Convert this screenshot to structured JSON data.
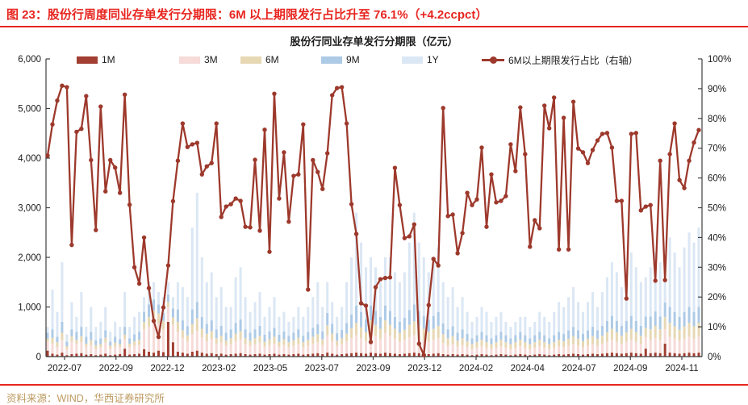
{
  "header": {
    "title": "图 23：股份行周度同业存单发行分期限：6M 以上期限发行占比升至 76.1%（+4.2ccpct）"
  },
  "footer": {
    "source": "资料来源：WIND，华西证券研究所"
  },
  "colors": {
    "accent_red": "#e8251f",
    "footer_gold": "#bd9b60",
    "axis": "#3f3f3f",
    "bar_1m": "#a23e32",
    "bar_3m": "#f6dbd9",
    "bar_6m": "#e7d8b4",
    "bar_9m": "#adcae6",
    "bar_1y": "#dbe7f4",
    "line": "#9d392c"
  },
  "chart_data": {
    "type": "bar",
    "subtype": "stacked-bar-with-line-combo",
    "title": "股份行同业存单发行分期限（亿元）",
    "legend_position": "top",
    "grid": false,
    "left_axis": {
      "label": "亿元",
      "min": 0,
      "max": 6000,
      "step": 1000,
      "ticks": [
        "0",
        "1,000",
        "2,000",
        "3,000",
        "4,000",
        "5,000",
        "6,000"
      ]
    },
    "right_axis": {
      "label": "占比",
      "min": 0,
      "max": 100,
      "step": 10,
      "ticks": [
        "0%",
        "10%",
        "20%",
        "30%",
        "40%",
        "50%",
        "60%",
        "70%",
        "80%",
        "90%",
        "100%"
      ]
    },
    "x_tick_labels": [
      "2022-07",
      "2022-09",
      "2022-12",
      "2023-02",
      "2023-05",
      "2023-07",
      "2023-09",
      "2023-12",
      "2024-02",
      "2024-04",
      "2024-07",
      "2024-09",
      "2024-11"
    ],
    "series": [
      {
        "name": "1M",
        "type": "bar",
        "color": "#a23e32",
        "values": [
          120,
          60,
          40,
          80,
          30,
          50,
          60,
          70,
          40,
          50,
          30,
          40,
          60,
          30,
          40,
          50,
          160,
          40,
          50,
          60,
          150,
          100,
          80,
          120,
          90,
          700,
          290,
          100,
          80,
          60,
          100,
          120,
          80,
          60,
          70,
          50,
          60,
          40,
          50,
          60,
          70,
          50,
          40,
          50,
          60,
          40,
          50,
          60,
          40,
          50,
          40,
          50,
          60,
          40,
          50,
          60,
          70,
          50,
          80,
          60,
          40,
          50,
          60,
          70,
          80,
          70,
          60,
          80,
          70,
          60,
          80,
          70,
          60,
          50,
          60,
          70,
          80,
          70,
          60,
          50,
          60,
          70,
          50,
          40,
          50,
          40,
          50,
          40,
          30,
          40,
          50,
          40,
          30,
          40,
          50,
          40,
          30,
          40,
          50,
          40,
          30,
          40,
          50,
          40,
          30,
          40,
          50,
          40,
          50,
          60,
          50,
          40,
          50,
          60,
          50,
          60,
          70,
          80,
          70,
          60,
          70,
          80,
          70,
          60,
          160,
          70,
          80,
          70,
          260,
          80,
          70,
          60,
          70,
          80,
          70,
          80
        ]
      },
      {
        "name": "3M",
        "type": "bar",
        "color": "#f6dbd9",
        "values": [
          180,
          200,
          150,
          250,
          120,
          260,
          200,
          220,
          160,
          180,
          120,
          150,
          220,
          130,
          160,
          140,
          200,
          150,
          170,
          180,
          400,
          500,
          600,
          550,
          450,
          300,
          350,
          400,
          300,
          250,
          350,
          400,
          300,
          250,
          280,
          200,
          220,
          180,
          200,
          250,
          280,
          200,
          180,
          200,
          220,
          160,
          180,
          200,
          160,
          180,
          150,
          170,
          190,
          150,
          170,
          200,
          220,
          180,
          350,
          250,
          180,
          200,
          250,
          300,
          350,
          300,
          250,
          400,
          350,
          300,
          400,
          350,
          300,
          250,
          280,
          320,
          350,
          300,
          280,
          250,
          280,
          300,
          220,
          180,
          200,
          160,
          180,
          150,
          120,
          140,
          160,
          140,
          120,
          140,
          160,
          140,
          120,
          140,
          160,
          140,
          120,
          140,
          160,
          140,
          120,
          140,
          160,
          150,
          170,
          190,
          170,
          150,
          170,
          190,
          170,
          200,
          230,
          260,
          230,
          200,
          230,
          260,
          230,
          200,
          230,
          260,
          290,
          260,
          290,
          320,
          290,
          260,
          290,
          320,
          290,
          320
        ]
      },
      {
        "name": "6M",
        "type": "bar",
        "color": "#e7d8b4",
        "values": [
          60,
          120,
          100,
          150,
          60,
          100,
          80,
          120,
          60,
          100,
          80,
          60,
          100,
          60,
          80,
          60,
          80,
          70,
          90,
          100,
          150,
          200,
          250,
          200,
          180,
          100,
          150,
          200,
          150,
          120,
          200,
          250,
          180,
          150,
          160,
          120,
          140,
          100,
          120,
          150,
          160,
          120,
          100,
          120,
          140,
          100,
          120,
          140,
          100,
          120,
          100,
          110,
          130,
          100,
          120,
          140,
          160,
          120,
          200,
          150,
          100,
          120,
          150,
          200,
          250,
          220,
          180,
          250,
          220,
          200,
          250,
          220,
          200,
          180,
          200,
          250,
          280,
          250,
          220,
          200,
          220,
          250,
          180,
          150,
          160,
          120,
          140,
          120,
          100,
          110,
          130,
          110,
          100,
          110,
          130,
          110,
          100,
          110,
          130,
          110,
          100,
          110,
          130,
          110,
          100,
          110,
          130,
          120,
          140,
          160,
          140,
          120,
          140,
          160,
          140,
          160,
          190,
          220,
          190,
          160,
          190,
          220,
          190,
          160,
          190,
          220,
          250,
          220,
          250,
          280,
          250,
          220,
          250,
          280,
          250,
          280
        ]
      },
      {
        "name": "9M",
        "type": "bar",
        "color": "#adcae6",
        "values": [
          120,
          170,
          110,
          220,
          90,
          140,
          160,
          190,
          140,
          170,
          100,
          120,
          150,
          80,
          120,
          100,
          160,
          110,
          140,
          160,
          200,
          250,
          220,
          180,
          160,
          150,
          180,
          250,
          200,
          180,
          300,
          330,
          240,
          200,
          220,
          180,
          200,
          160,
          180,
          220,
          240,
          180,
          160,
          180,
          200,
          140,
          160,
          180,
          140,
          160,
          130,
          150,
          170,
          130,
          160,
          180,
          200,
          160,
          250,
          200,
          150,
          170,
          220,
          280,
          350,
          310,
          260,
          300,
          280,
          240,
          300,
          280,
          240,
          220,
          240,
          300,
          340,
          300,
          260,
          240,
          260,
          280,
          220,
          180,
          200,
          160,
          180,
          150,
          120,
          140,
          160,
          140,
          120,
          140,
          160,
          140,
          120,
          140,
          160,
          140,
          120,
          140,
          160,
          140,
          120,
          140,
          160,
          150,
          170,
          190,
          170,
          150,
          170,
          190,
          170,
          200,
          230,
          260,
          230,
          200,
          230,
          260,
          230,
          200,
          230,
          260,
          290,
          260,
          290,
          320,
          290,
          260,
          290,
          320,
          290,
          320
        ]
      },
      {
        "name": "1Y",
        "type": "bar",
        "color": "#dbe7f4",
        "values": [
          120,
          800,
          500,
          1200,
          150,
          550,
          300,
          700,
          200,
          500,
          270,
          330,
          470,
          200,
          300,
          250,
          700,
          230,
          350,
          400,
          300,
          450,
          350,
          250,
          320,
          250,
          230,
          550,
          670,
          590,
          1650,
          2200,
          1200,
          840,
          970,
          650,
          780,
          520,
          450,
          920,
          1050,
          650,
          420,
          550,
          680,
          360,
          490,
          620,
          360,
          390,
          280,
          320,
          450,
          380,
          500,
          620,
          850,
          490,
          620,
          440,
          330,
          460,
          820,
          1150,
          1870,
          1400,
          1050,
          970,
          880,
          700,
          970,
          1080,
          900,
          800,
          920,
          1360,
          1850,
          1380,
          1180,
          960,
          1080,
          1300,
          830,
          650,
          790,
          520,
          650,
          440,
          330,
          370,
          500,
          470,
          330,
          370,
          400,
          270,
          230,
          270,
          300,
          370,
          230,
          270,
          400,
          370,
          330,
          470,
          600,
          540,
          670,
          800,
          570,
          440,
          570,
          700,
          470,
          680,
          880,
          1080,
          980,
          780,
          880,
          1280,
          1080,
          880,
          790,
          990,
          1190,
          1090,
          910,
          1400,
          1200,
          1000,
          1300,
          1500,
          1400,
          1600
        ]
      },
      {
        "name": "6M以上期限发行占比（右轴）",
        "type": "line",
        "axis": "right",
        "color": "#9d392c",
        "values": [
          67.5,
          78,
          86,
          91,
          90.5,
          37.5,
          75.5,
          76.5,
          87.5,
          66,
          42.5,
          84,
          55.5,
          66,
          63.5,
          55,
          88,
          51,
          30,
          24.5,
          40,
          23,
          12,
          6.6,
          16.5,
          30.6,
          52.2,
          65.8,
          78.3,
          70.4,
          71.3,
          71.8,
          61.2,
          63.9,
          65,
          78.3,
          46.9,
          50.4,
          51.2,
          53.1,
          52.3,
          43.6,
          43.4,
          66.1,
          42.3,
          76.2,
          35.2,
          88.3,
          53.1,
          68.6,
          45.3,
          60.7,
          61.2,
          78,
          22.5,
          66,
          62,
          56.3,
          68.3,
          87.8,
          90.2,
          90.5,
          78.3,
          51.2,
          41.2,
          17.9,
          17.1,
          4.9,
          23.3,
          26,
          26.4,
          26.6,
          63.4,
          50.9,
          39.8,
          40.4,
          44.4,
          4.3,
          0.5,
          17.3,
          32.8,
          30.6,
          83.5,
          47.2,
          47.7,
          34.7,
          41.5,
          55,
          50.9,
          52.8,
          70.2,
          43.6,
          61.2,
          51.8,
          52.3,
          53.9,
          71.3,
          62.3,
          83.7,
          68,
          36.9,
          45.8,
          43.1,
          84.3,
          76.7,
          87,
          36,
          80.2,
          36,
          85.6,
          69.9,
          68.6,
          65,
          69.4,
          72.6,
          74.8,
          75.1,
          70.2,
          52.3,
          52.3,
          19.5,
          74.8,
          75.1,
          49.1,
          50.4,
          50.9,
          25.5,
          65.8,
          25.7,
          68,
          78.3,
          59.3,
          56.6,
          65.8,
          71.9,
          76.1
        ]
      }
    ]
  }
}
